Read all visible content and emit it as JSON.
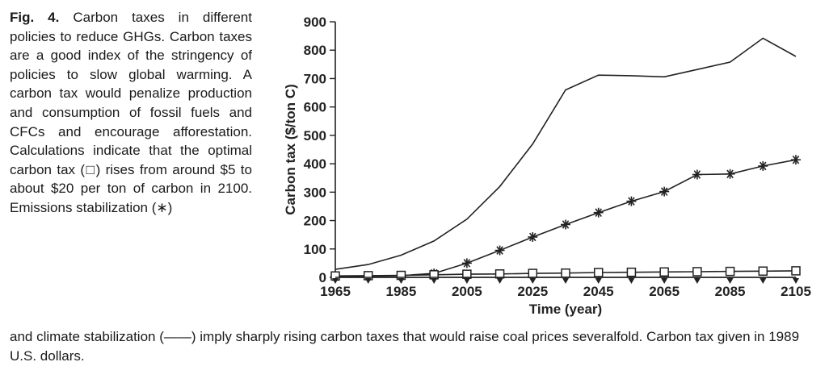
{
  "caption": {
    "fig_label": "Fig. 4.",
    "text_side": "Carbon taxes in different policies to reduce GHGs. Carbon taxes are a good index of the stringency of policies to slow global warming. A carbon tax would penalize production and consumption of fossil fuels and CFCs and encourage afforestation. Calculations indicate that the optimal carbon tax (□) rises from around $5 to about $20 per ton of carbon in 2100. Emissions stabilization (∗)",
    "text_bottom": "and climate stabilization (——) imply sharply rising carbon taxes that would raise coal prices severalfold. Carbon tax given in 1989 U.S. dollars."
  },
  "chart_data": {
    "type": "line",
    "xlabel": "Time (year)",
    "ylabel": "Carbon tax ($/ton C)",
    "xlim": [
      1965,
      2105
    ],
    "ylim": [
      0,
      900
    ],
    "x_ticks": [
      1965,
      1985,
      2005,
      2025,
      2045,
      2065,
      2085,
      2105
    ],
    "y_ticks": [
      0,
      100,
      200,
      300,
      400,
      500,
      600,
      700,
      800,
      900
    ],
    "grid": false,
    "x": [
      1965,
      1975,
      1985,
      1995,
      2005,
      2015,
      2025,
      2035,
      2045,
      2055,
      2065,
      2075,
      2085,
      2095,
      2105
    ],
    "series": [
      {
        "marker": "none",
        "values": [
          28,
          45,
          78,
          128,
          205,
          320,
          470,
          660,
          712,
          710,
          706,
          732,
          758,
          842,
          778
        ]
      },
      {
        "marker": "asterisk",
        "values": [
          2,
          4,
          6,
          14,
          50,
          95,
          142,
          186,
          228,
          268,
          302,
          362,
          364,
          392,
          414
        ]
      },
      {
        "marker": "square",
        "values": [
          5,
          6,
          7,
          9,
          11,
          12,
          14,
          15,
          17,
          18,
          19,
          20,
          21,
          22,
          23
        ]
      },
      {
        "marker": "triangle-down",
        "values": [
          0,
          0,
          0,
          0,
          0,
          0,
          0,
          0,
          0,
          0,
          0,
          0,
          0,
          0,
          0
        ]
      }
    ]
  }
}
